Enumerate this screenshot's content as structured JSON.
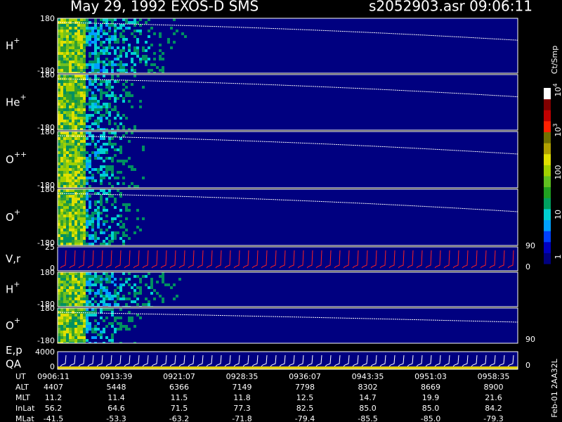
{
  "header": {
    "title": "May 29, 1992   EXOS-D SMS",
    "file": "s2052903.asr  09:06:11"
  },
  "panels": [
    {
      "label": "H",
      "charge": "+",
      "top": "180",
      "bottom": "-180"
    },
    {
      "label": "He",
      "charge": "+",
      "top": "180",
      "bottom": "-180"
    },
    {
      "label": "O",
      "charge": "++",
      "top": "180",
      "bottom": "-180"
    },
    {
      "label": "O",
      "charge": "+",
      "top": "180",
      "bottom": "-180"
    },
    {
      "label": "V,r",
      "top": "25",
      "bottom": "0",
      "right_top": "90",
      "right_bottom": "0"
    },
    {
      "label": "H",
      "charge": "+",
      "top": "180",
      "bottom": "-180"
    },
    {
      "label": "O",
      "charge": "+",
      "top": "180",
      "bottom": "-180",
      "right_bottom": "90"
    },
    {
      "label": "E,p",
      "label2": "QA",
      "top": "4000",
      "bottom": "0",
      "right_bottom": "0"
    }
  ],
  "colorbar": {
    "unit": "Ct/Smp",
    "labels": [
      {
        "base": "10",
        "exp": "4"
      },
      {
        "base": "10",
        "exp": "3"
      },
      {
        "base": "100"
      },
      {
        "base": "10"
      },
      {
        "base": "1"
      }
    ]
  },
  "footer": {
    "id": "Feb-01 2AA32L"
  },
  "table": {
    "rows": [
      {
        "name": "UT",
        "cells": [
          "0906:11",
          "0913:39",
          "0921:07",
          "0928:35",
          "0936:07",
          "0943:35",
          "0951:03",
          "0958:35"
        ]
      },
      {
        "name": "ALT",
        "cells": [
          "4407",
          "5448",
          "6366",
          "7149",
          "7798",
          "8302",
          "8669",
          "8900"
        ]
      },
      {
        "name": "MLT",
        "cells": [
          "11.2",
          "11.4",
          "11.5",
          "11.8",
          "12.5",
          "14.7",
          "19.9",
          "21.6"
        ]
      },
      {
        "name": "InLat",
        "cells": [
          "56.2",
          "64.6",
          "71.5",
          "77.3",
          "82.5",
          "85.0",
          "85.0",
          "84.2"
        ]
      },
      {
        "name": "MLat",
        "cells": [
          "-41.5",
          "-53.3",
          "-63.2",
          "-71.8",
          "-79.4",
          "-85.5",
          "-85.0",
          "-79.3"
        ]
      }
    ]
  }
}
